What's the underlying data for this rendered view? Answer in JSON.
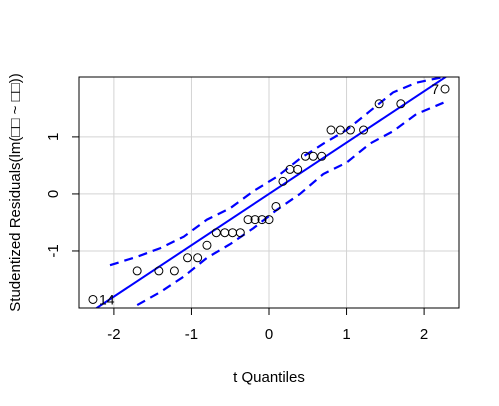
{
  "chart_data": {
    "type": "scatter",
    "title": "",
    "xlabel": "t Quantiles",
    "ylabel": "Studentized Residuals(lm(□□ ~ □□))",
    "xlim": [
      -2.45,
      2.45
    ],
    "ylim": [
      -2.0,
      2.05
    ],
    "xticks": [
      -2,
      -1,
      0,
      1,
      2
    ],
    "xtick_labels": [
      "-2",
      "-1",
      "0",
      "1",
      "2"
    ],
    "yticks": [
      -1,
      0,
      1
    ],
    "ytick_labels": [
      "-1",
      "0",
      "1"
    ],
    "grid": true,
    "colors": {
      "fit": "#0000ff",
      "band": "#0000ff",
      "points": "#000000",
      "grid": "#d3d3d3"
    },
    "points": {
      "x": [
        -2.27,
        -1.7,
        -1.42,
        -1.22,
        -1.05,
        -0.92,
        -0.8,
        -0.68,
        -0.57,
        -0.47,
        -0.37,
        -0.27,
        -0.18,
        -0.09,
        0.0,
        0.09,
        0.18,
        0.27,
        0.37,
        0.47,
        0.57,
        0.68,
        0.8,
        0.92,
        1.05,
        1.22,
        1.42,
        1.7,
        2.27
      ],
      "y": [
        -1.85,
        -1.35,
        -1.35,
        -1.35,
        -1.12,
        -1.12,
        -0.9,
        -0.68,
        -0.68,
        -0.68,
        -0.68,
        -0.45,
        -0.45,
        -0.45,
        -0.45,
        -0.22,
        0.22,
        0.43,
        0.43,
        0.66,
        0.66,
        0.66,
        1.12,
        1.12,
        1.12,
        1.12,
        1.58,
        1.58,
        1.84
      ]
    },
    "fit_line": {
      "intercept": 0.0,
      "slope": 0.9
    },
    "band_upper": {
      "x": [
        -2.05,
        -1.7,
        -1.4,
        -1.1,
        -0.8,
        -0.5,
        -0.2,
        0.1,
        0.4,
        0.7,
        1.0,
        1.3,
        1.6,
        1.9,
        2.25
      ],
      "y": [
        -1.25,
        -1.1,
        -0.95,
        -0.75,
        -0.45,
        -0.25,
        0.05,
        0.3,
        0.62,
        0.88,
        1.12,
        1.45,
        1.78,
        1.95,
        2.05
      ]
    },
    "band_lower": {
      "x": [
        -1.7,
        -1.4,
        -1.1,
        -0.8,
        -0.5,
        -0.2,
        0.1,
        0.4,
        0.7,
        1.0,
        1.3,
        1.6,
        1.9,
        2.25
      ],
      "y": [
        -1.95,
        -1.72,
        -1.45,
        -1.12,
        -0.88,
        -0.6,
        -0.28,
        0.0,
        0.35,
        0.55,
        0.88,
        1.1,
        1.4,
        1.6
      ]
    },
    "annotations": [
      {
        "text": "14",
        "x": -2.27,
        "y": -1.85,
        "side": "right"
      },
      {
        "text": "7",
        "x": 2.27,
        "y": 1.84,
        "side": "left"
      }
    ]
  }
}
